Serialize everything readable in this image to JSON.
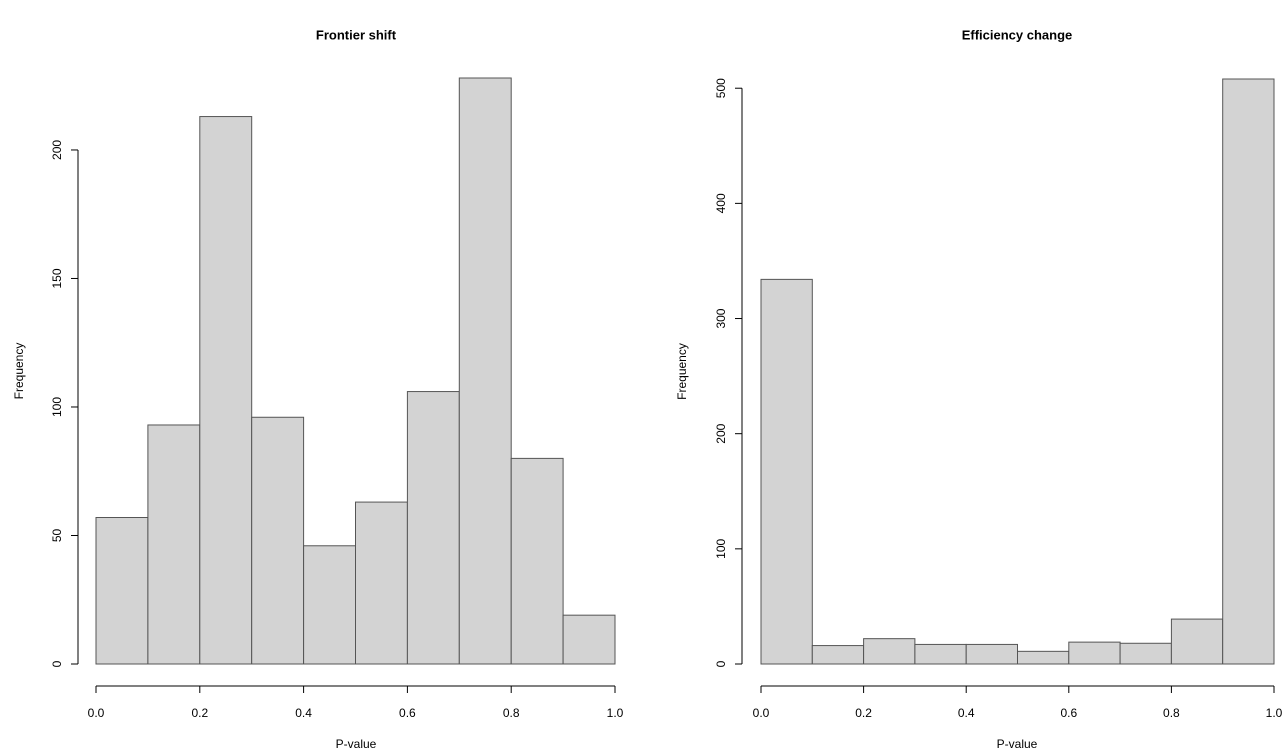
{
  "chart_data": [
    {
      "type": "histogram",
      "title": "Frontier shift",
      "x_label": "P-value",
      "y_label": "Frequency",
      "bins": [
        0,
        0.1,
        0.2,
        0.3,
        0.4,
        0.5,
        0.6,
        0.7,
        0.8,
        0.9,
        1
      ],
      "values": [
        57,
        93,
        213,
        96,
        46,
        63,
        106,
        228,
        80,
        19
      ],
      "color": "#d3d3d3",
      "xlim": [
        0,
        1
      ],
      "xticks": [
        {
          "value": 0,
          "label": "0.0"
        },
        0.2,
        0.4,
        0.6,
        0.8,
        {
          "value": 1,
          "label": "1.0"
        }
      ],
      "ylim": [
        0,
        228
      ],
      "yticks": [
        0,
        50,
        100,
        150,
        200
      ]
    },
    {
      "type": "histogram",
      "title": "Efficiency change",
      "x_label": "P-value",
      "y_label": "Frequency",
      "bins": [
        0,
        0.1,
        0.2,
        0.3,
        0.4,
        0.5,
        0.6,
        0.7,
        0.8,
        0.9,
        1
      ],
      "values": [
        334,
        16,
        22,
        17,
        17,
        11,
        19,
        18,
        39,
        508
      ],
      "color": "#d3d3d3",
      "xlim": [
        0,
        1
      ],
      "xticks": [
        {
          "value": 0,
          "label": "0.0"
        },
        0.2,
        0.4,
        0.6,
        0.8,
        {
          "value": 1,
          "label": "1.0"
        }
      ],
      "ylim": [
        0,
        508
      ],
      "yticks": [
        0,
        100,
        200,
        300,
        400,
        500
      ]
    }
  ]
}
